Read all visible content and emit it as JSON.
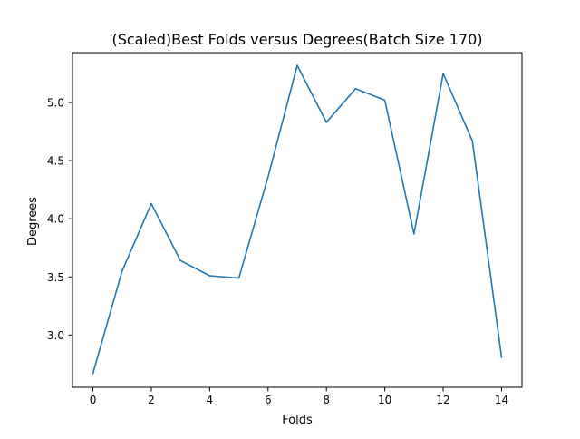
{
  "chart_data": {
    "type": "line",
    "title": "(Scaled)Best Folds versus Degrees(Batch Size 170)",
    "xlabel": "Folds",
    "ylabel": "Degrees",
    "xlim": [
      -0.7,
      14.7
    ],
    "ylim": [
      2.55,
      5.43
    ],
    "xticks": [
      0,
      2,
      4,
      6,
      8,
      10,
      12,
      14
    ],
    "xtick_labels": [
      "0",
      "2",
      "4",
      "6",
      "8",
      "10",
      "12",
      "14"
    ],
    "yticks": [
      3.0,
      3.5,
      4.0,
      4.5,
      5.0
    ],
    "ytick_labels": [
      "3.0",
      "3.5",
      "4.0",
      "4.5",
      "5.0"
    ],
    "grid": false,
    "line_color": "#1f77b4",
    "x": [
      0,
      1,
      2,
      3,
      4,
      5,
      6,
      7,
      8,
      9,
      10,
      11,
      12,
      13,
      14
    ],
    "series": [
      {
        "values": [
          2.67,
          3.55,
          4.13,
          3.64,
          3.51,
          3.49,
          4.36,
          5.32,
          4.83,
          5.12,
          5.02,
          3.87,
          5.25,
          4.67,
          2.81
        ]
      }
    ]
  }
}
